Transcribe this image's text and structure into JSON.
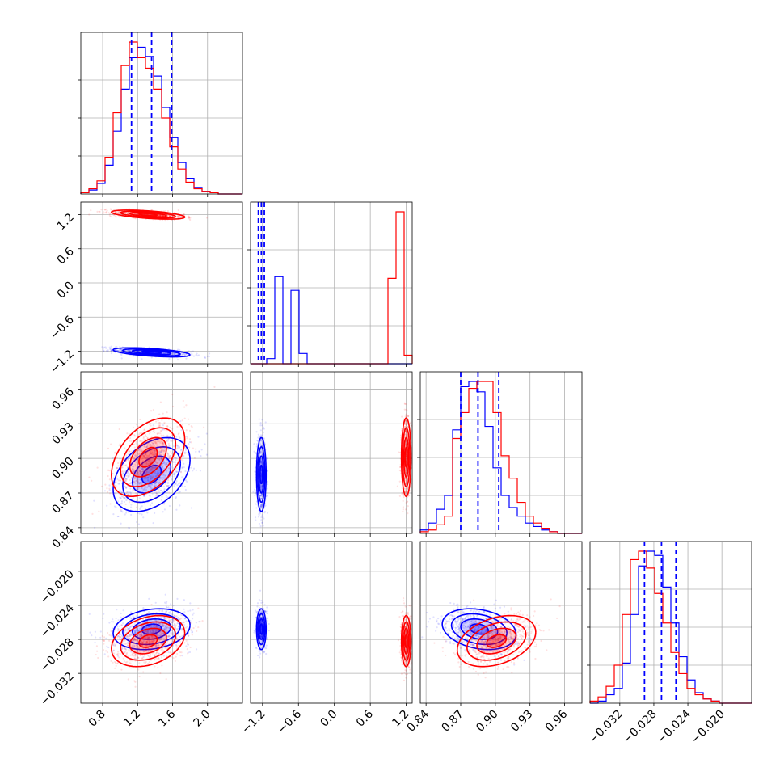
{
  "chart_data": {
    "type": "scatter",
    "title": "",
    "subtitle": "",
    "grid": true,
    "legend": "none",
    "colors": {
      "series_a": "#0000ff",
      "series_b": "#ff0000"
    },
    "series": [
      {
        "color": "#0000ff",
        "means": [
          1.36,
          -1.22,
          0.886,
          -0.0268
        ],
        "stds": [
          0.22,
          0.04,
          0.016,
          0.0012
        ],
        "corr_01": -0.55,
        "corr_02": 0.4,
        "corr_03": 0.2,
        "corr_23": -0.25
      },
      {
        "color": "#ff0000",
        "means": [
          1.32,
          1.2,
          0.901,
          -0.0282
        ],
        "stds": [
          0.21,
          0.04,
          0.017,
          0.0015
        ],
        "corr_01": -0.55,
        "corr_02": 0.45,
        "corr_03": 0.3,
        "corr_23": 0.35
      }
    ],
    "quantile_lines": [
      [
        1.13,
        1.36,
        1.59
      ],
      [
        -1.27,
        -1.22,
        -1.17
      ],
      [
        0.87,
        0.885,
        0.903
      ],
      [
        -0.0291,
        -0.0271,
        -0.0254
      ]
    ],
    "axes": {
      "x": [
        {
          "range": [
            0.55,
            2.4
          ],
          "ticks": [
            "0.8",
            "1.2",
            "1.6",
            "2.0"
          ]
        },
        {
          "range": [
            -1.4,
            1.3
          ],
          "ticks": [
            "−1.2",
            "−0.6",
            "0.0",
            "0.6",
            "1.2"
          ]
        },
        {
          "range": [
            0.835,
            0.975
          ],
          "ticks": [
            "0.84",
            "0.87",
            "0.90",
            "0.93",
            "0.96"
          ]
        },
        {
          "range": [
            -0.0355,
            -0.0165
          ],
          "ticks": [
            "−0.032",
            "−0.028",
            "−0.024",
            "−0.020"
          ]
        }
      ],
      "y": [
        null,
        {
          "range": [
            -1.42,
            1.42
          ],
          "ticks": [
            "1.2",
            "0.6",
            "0.0",
            "−0.6",
            "−1.2"
          ]
        },
        {
          "range": [
            0.835,
            0.975
          ],
          "ticks": [
            "0.96",
            "0.93",
            "0.90",
            "0.87",
            "0.84"
          ]
        },
        {
          "range": [
            -0.0355,
            -0.0165
          ],
          "ticks": [
            "−0.020",
            "−0.024",
            "−0.028",
            "−0.032"
          ]
        }
      ]
    },
    "histograms": {
      "bins": 20,
      "param0": {
        "blue": [
          1,
          3,
          8,
          22,
          48,
          80,
          104,
          112,
          105,
          90,
          66,
          43,
          24,
          12,
          5,
          2,
          1,
          0,
          0,
          0
        ],
        "red": [
          1,
          4,
          10,
          28,
          62,
          98,
          116,
          104,
          96,
          80,
          58,
          36,
          19,
          9,
          4,
          2,
          1,
          0,
          0,
          0
        ]
      },
      "param1": {
        "blue": [
          0,
          0,
          3,
          51,
          0,
          43,
          6,
          0,
          0,
          0,
          0,
          0,
          0,
          0,
          0,
          0,
          0,
          0,
          0,
          0
        ],
        "red": [
          0,
          0,
          0,
          0,
          0,
          0,
          0,
          0,
          0,
          0,
          0,
          0,
          0,
          0,
          0,
          0,
          0,
          50,
          89,
          5
        ]
      },
      "param2": {
        "blue": [
          2,
          6,
          14,
          22,
          60,
          85,
          88,
          82,
          62,
          38,
          22,
          15,
          10,
          6,
          4,
          2,
          1,
          0,
          0,
          0
        ],
        "red": [
          1,
          2,
          5,
          10,
          55,
          70,
          84,
          88,
          88,
          70,
          45,
          32,
          18,
          10,
          6,
          3,
          1,
          0,
          0,
          0
        ]
      },
      "param3": {
        "blue": [
          0,
          1,
          4,
          7,
          19,
          42,
          65,
          72,
          70,
          55,
          38,
          22,
          11,
          5,
          2,
          1,
          0,
          0,
          0,
          0
        ],
        "red": [
          1,
          3,
          8,
          18,
          42,
          68,
          72,
          64,
          52,
          38,
          24,
          14,
          7,
          4,
          2,
          1,
          0,
          0,
          0,
          0
        ]
      }
    }
  }
}
